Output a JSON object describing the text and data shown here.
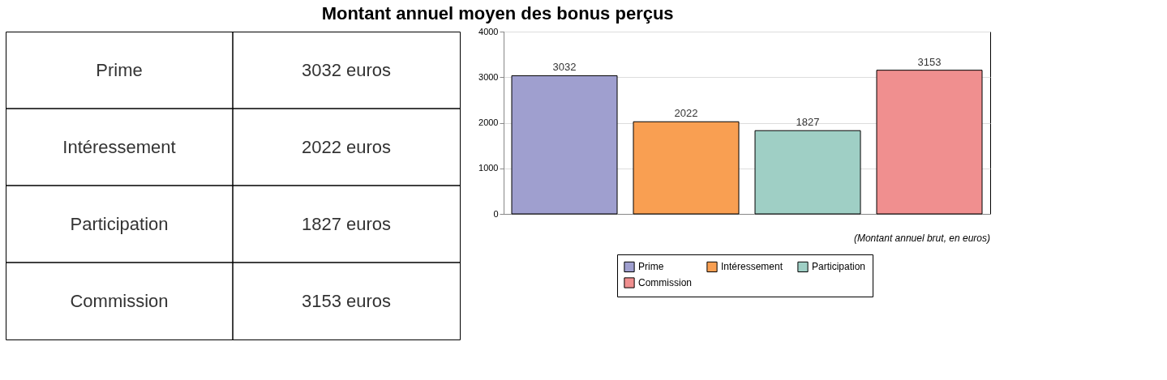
{
  "chart_data": [
    {
      "type": "other",
      "title": "Montant annuel moyen des bonus perçus",
      "categories": [
        "Prime",
        "Intéressement",
        "Participation",
        "Commission"
      ],
      "value_labels": [
        "3032 euros",
        "2022 euros",
        "1827 euros",
        "3153 euros"
      ]
    },
    {
      "type": "bar",
      "categories": [
        null
      ],
      "series": [
        {
          "name": "Prime",
          "color": "#9f9fcf",
          "values": [
            3032
          ]
        },
        {
          "name": "Intéressement",
          "color": "#f99f52",
          "values": [
            2022
          ]
        },
        {
          "name": "Participation",
          "color": "#9fcfc5",
          "values": [
            1827
          ]
        },
        {
          "name": "Commission",
          "color": "#f08f8f",
          "values": [
            3153
          ]
        }
      ],
      "ylim": [
        0,
        4000
      ],
      "yticks": [
        0,
        1000,
        2000,
        3000,
        4000
      ],
      "grid": "y",
      "data_labels": true,
      "legend": "bottom",
      "tick_labels": "y",
      "annotations": [
        "(Montant annuel brut, en euros)"
      ]
    }
  ]
}
